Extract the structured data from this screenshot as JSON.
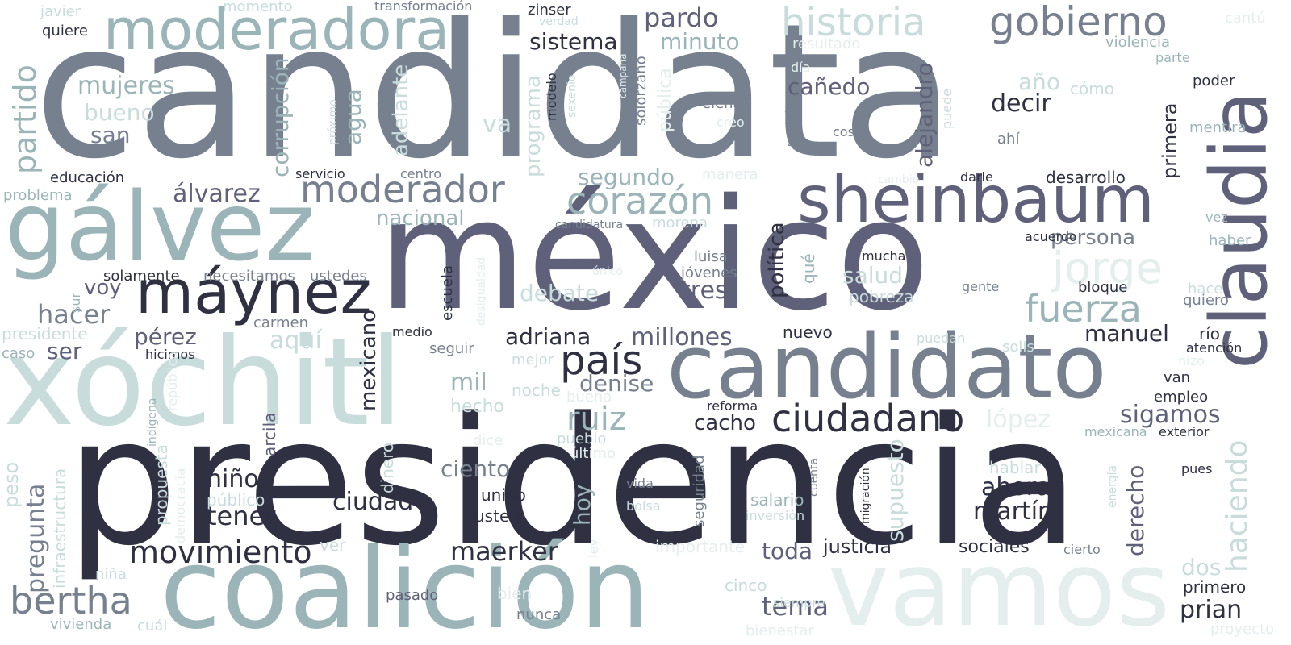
{
  "words": {
    "candidata": "candidata",
    "presidencia": "presidencia",
    "mexico": "méxico",
    "xochitl": "xóchitl",
    "candidato": "candidato",
    "vamos": "vamos",
    "coalicion": "coalición",
    "galvez": "gálvez",
    "claudia": "claudia",
    "sheinbaum": "sheinbaum",
    "moderadora": "moderadora",
    "maynez": "máynez",
    "gobierno": "gobierno",
    "historia": "historia",
    "moderador": "moderador",
    "corazon": "corazón",
    "jorge": "jorge",
    "fuerza": "fuerza",
    "ciudadano": "ciudadano",
    "pais": "país",
    "bertha": "bertha",
    "movimiento": "movimiento",
    "partido": "partido",
    "mujeres": "mujeres",
    "bueno": "bueno",
    "san": "san",
    "hacer": "hacer",
    "alvarez": "álvarez",
    "corrupcion": "corrupción",
    "agua": "agua",
    "adelante": "adelante",
    "programa": "programa",
    "va": "va",
    "pardo": "pardo",
    "minuto": "minuto",
    "sistema": "sistema",
    "segundo": "segundo",
    "nacional": "nacional",
    "canedo": "cañedo",
    "decir": "decir",
    "ano": "año",
    "alejandro": "alejandro",
    "primera": "primera",
    "haciendo": "haciendo",
    "persona": "persona",
    "politica": "política",
    "salud": "salud",
    "pobreza": "pobreza",
    "debate": "debate",
    "tres": "tres",
    "voy": "voy",
    "perez": "pérez",
    "ser": "ser",
    "aqui": "aquí",
    "mil": "mil",
    "hecho": "hecho",
    "mexicano": "mexicano",
    "adriana": "adriana",
    "millones": "millones",
    "manuel": "manuel",
    "ruiz": "ruiz",
    "denise": "denise",
    "cacho": "cacho",
    "sigamos": "sigamos",
    "lopez": "lópez",
    "pregunta": "pregunta",
    "nino": "niño",
    "tener": "tener",
    "ciudad": "ciudad",
    "ciento": "ciento",
    "hoy": "hoy",
    "ahora": "ahora",
    "martin": "martín",
    "derecho": "derecho",
    "maerker": "maerker",
    "toda": "toda",
    "tema": "tema",
    "justicia": "justicia",
    "sociales": "sociales",
    "dos": "dos",
    "prian": "prian",
    "supuesto": "supuesto",
    "arcila": "arcila",
    "dinero": "dinero",
    "infraestructura": "infraestructura",
    "peso": "peso",
    "javier": "javier",
    "quiere": "quiere",
    "momento": "momento",
    "transformacion": "transformación",
    "zinser": "zinser",
    "verdad": "verdad",
    "resultado": "resultado",
    "cantu": "cantú",
    "violencia": "violencia",
    "parte": "parte",
    "como": "cómo",
    "poder": "poder",
    "mentira": "mentira",
    "dia": "día",
    "educacion": "educación",
    "servicio": "servicio",
    "centro": "centro",
    "problema": "problema",
    "proximo": "próximo",
    "modelo": "modelo",
    "sexenio": "sexenio",
    "campana": "campaña",
    "solorzano": "solórzano",
    "publica": "pública",
    "elena": "elena",
    "creo": "creo",
    "cosa": "cosa",
    "social": "social",
    "puede": "puede",
    "ahi": "ahí",
    "manera": "manera",
    "cambio": "cambio",
    "darle": "darle",
    "desarrollo": "desarrollo",
    "vez": "vez",
    "haber": "haber",
    "candidatura": "candidatura",
    "morena": "morena",
    "acuerdo": "acuerdo",
    "luisa": "luisa",
    "jovenes": "jóvenes",
    "mucha": "mucha",
    "unico": "único",
    "desigualdad": "desigualdad",
    "que": "qué",
    "gente": "gente",
    "bloque": "bloque",
    "hace": "hace",
    "quiero": "quiero",
    "solamente": "solamente",
    "necesitamos": "necesitamos",
    "ustedes": "ustedes",
    "sur": "sur",
    "presidente": "presidente",
    "carmen": "carmen",
    "caso": "caso",
    "hicimos": "hicimos",
    "medio": "medio",
    "escuela": "escuela",
    "nuevo": "nuevo",
    "puedan": "puedan",
    "solis": "solís",
    "rio": "río",
    "atencion": "atención",
    "hizo": "hizo",
    "seguir": "seguir",
    "mejor": "mejor",
    "noche": "noche",
    "buena": "buena",
    "reforma": "reforma",
    "van": "van",
    "empleo": "empleo",
    "exterior": "exterior",
    "mexicana": "mexicana",
    "indigena": "indígena",
    "republica": "república",
    "dice": "dice",
    "pueblo": "pueblo",
    "ultimo": "último",
    "propuesta": "propuesta",
    "democracia": "democracia",
    "publico": "público",
    "unido": "unido",
    "usted": "usted",
    "vida": "vida",
    "bolsa": "bolsa",
    "seguridad": "seguridad",
    "salario": "salario",
    "inversion": "inversión",
    "cuenta": "cuenta",
    "migracion": "migración",
    "hablar": "hablar",
    "energia": "energía",
    "pues": "pues",
    "ver": "ver",
    "ley": "ley",
    "importante": "importante",
    "cierto": "cierto",
    "nina": "niña",
    "pasado": "pasado",
    "bien": "bien",
    "nunca": "nunca",
    "cinco": "cinco",
    "siempre": "siempre",
    "vivienda": "vivienda",
    "cual": "cuál",
    "bienestar": "bienestar",
    "primero": "primero",
    "proyecto": "proyecto"
  },
  "palette": [
    "#2f3042",
    "#5f6079",
    "#76808f",
    "#9ab4b8",
    "#c9dcdc",
    "#e4eeed"
  ]
}
